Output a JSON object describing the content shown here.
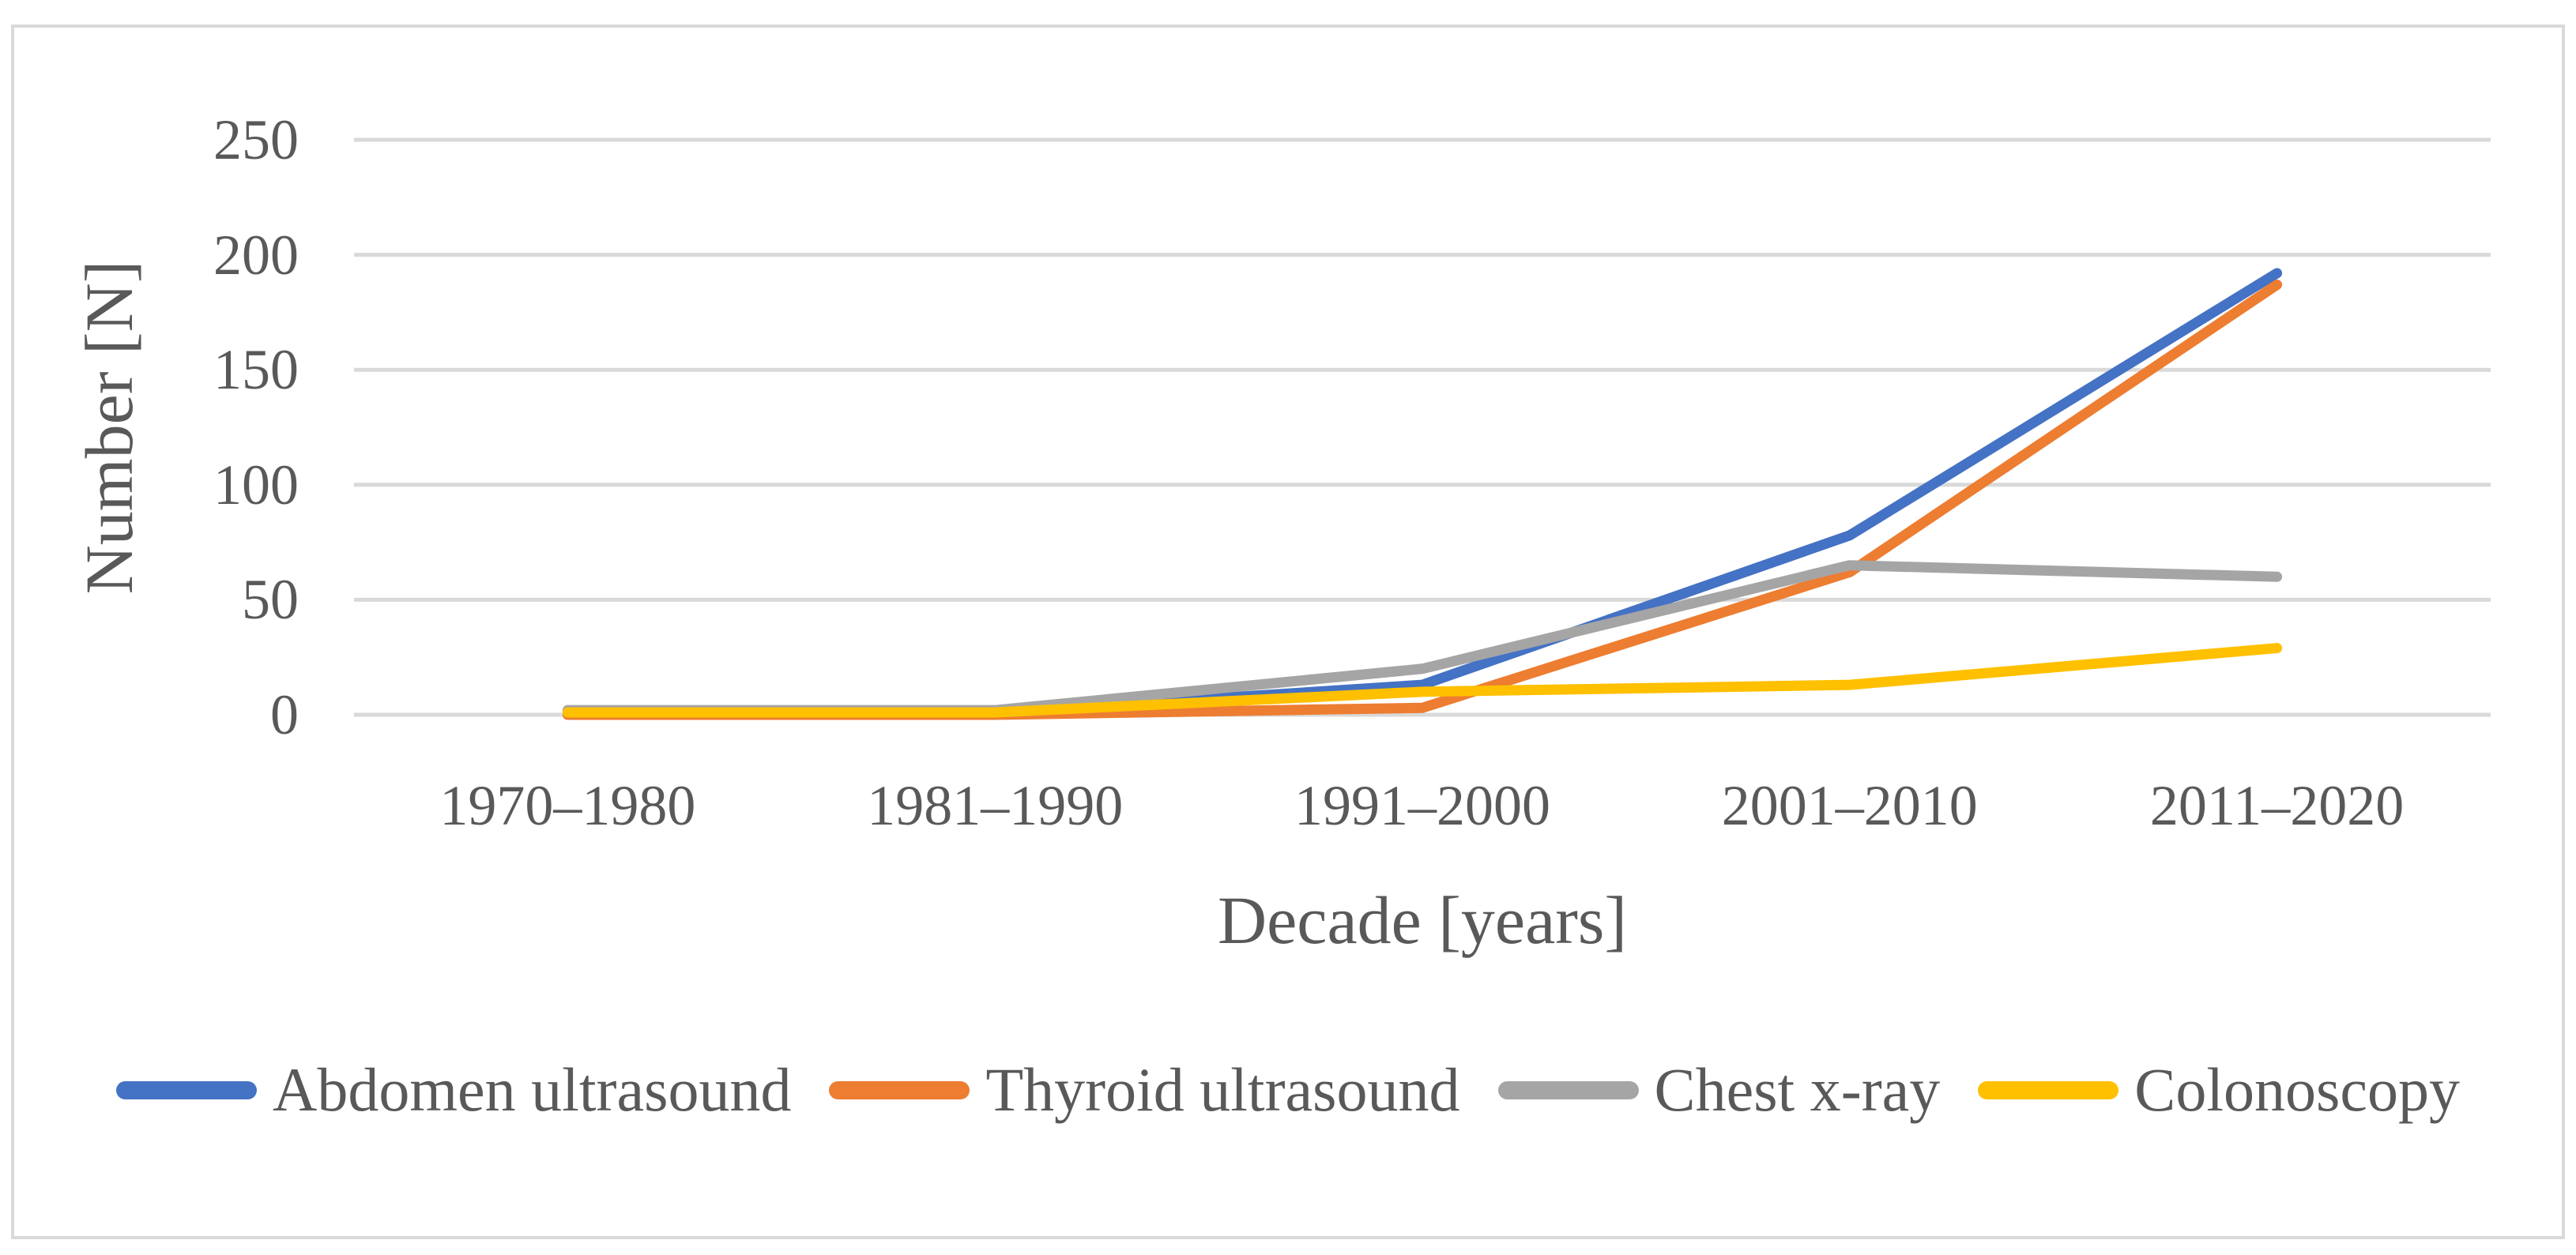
{
  "figure": {
    "background": "#ffffff",
    "border_color": "#d9d9d9",
    "gridline_color": "#d9d9d9",
    "text_color": "#595959"
  },
  "chart_data": {
    "type": "line",
    "title": "",
    "xlabel": "Decade [years]",
    "ylabel": "Number [N]",
    "categories": [
      "1970–1980",
      "1981–1990",
      "1991–2000",
      "2001–2010",
      "2011–2020"
    ],
    "series": [
      {
        "name": "Abdomen ultrasound",
        "color": "#4472C4",
        "values": [
          1,
          1,
          13,
          78,
          192
        ]
      },
      {
        "name": "Thyroid ultrasound",
        "color": "#ED7D31",
        "values": [
          0,
          0,
          3,
          62,
          187
        ]
      },
      {
        "name": "Chest x-ray",
        "color": "#A5A5A5",
        "values": [
          2,
          2,
          20,
          65,
          60
        ]
      },
      {
        "name": "Colonoscopy",
        "color": "#FFC000",
        "values": [
          1,
          1,
          10,
          13,
          29
        ]
      }
    ],
    "ylim": [
      0,
      250
    ],
    "yticks": [
      0,
      50,
      100,
      150,
      200,
      250
    ],
    "grid": true,
    "legend_position": "bottom"
  }
}
